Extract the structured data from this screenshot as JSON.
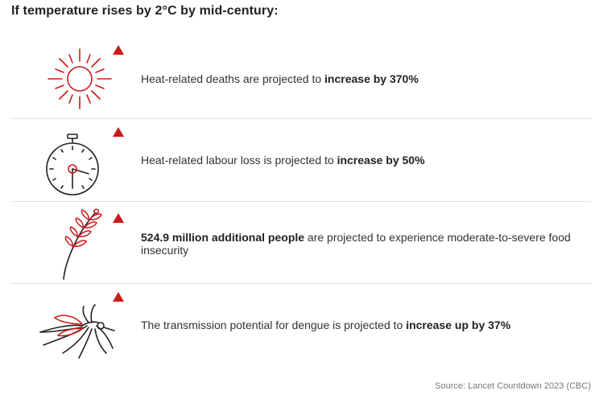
{
  "title": "If temperature rises by 2°C by mid-century:",
  "indicator_color": "#cc1a1a",
  "rows": [
    {
      "icon": "sun-icon",
      "pre": "Heat-related deaths are projected to ",
      "bold": "increase by 370%",
      "post": ""
    },
    {
      "icon": "stopwatch-icon",
      "pre": "Heat-related labour loss is projected to ",
      "bold": "increase by 50%",
      "post": ""
    },
    {
      "icon": "wheat-icon",
      "pre": "",
      "bold": "524.9 million additional people",
      "post": " are projected to experience moderate-to-severe food insecurity"
    },
    {
      "icon": "mosquito-icon",
      "pre": "The transmission potential for dengue is projected to ",
      "bold": "increase up by 37%",
      "post": ""
    }
  ],
  "source": "Source: Lancet Countdown 2023 (CBC)"
}
